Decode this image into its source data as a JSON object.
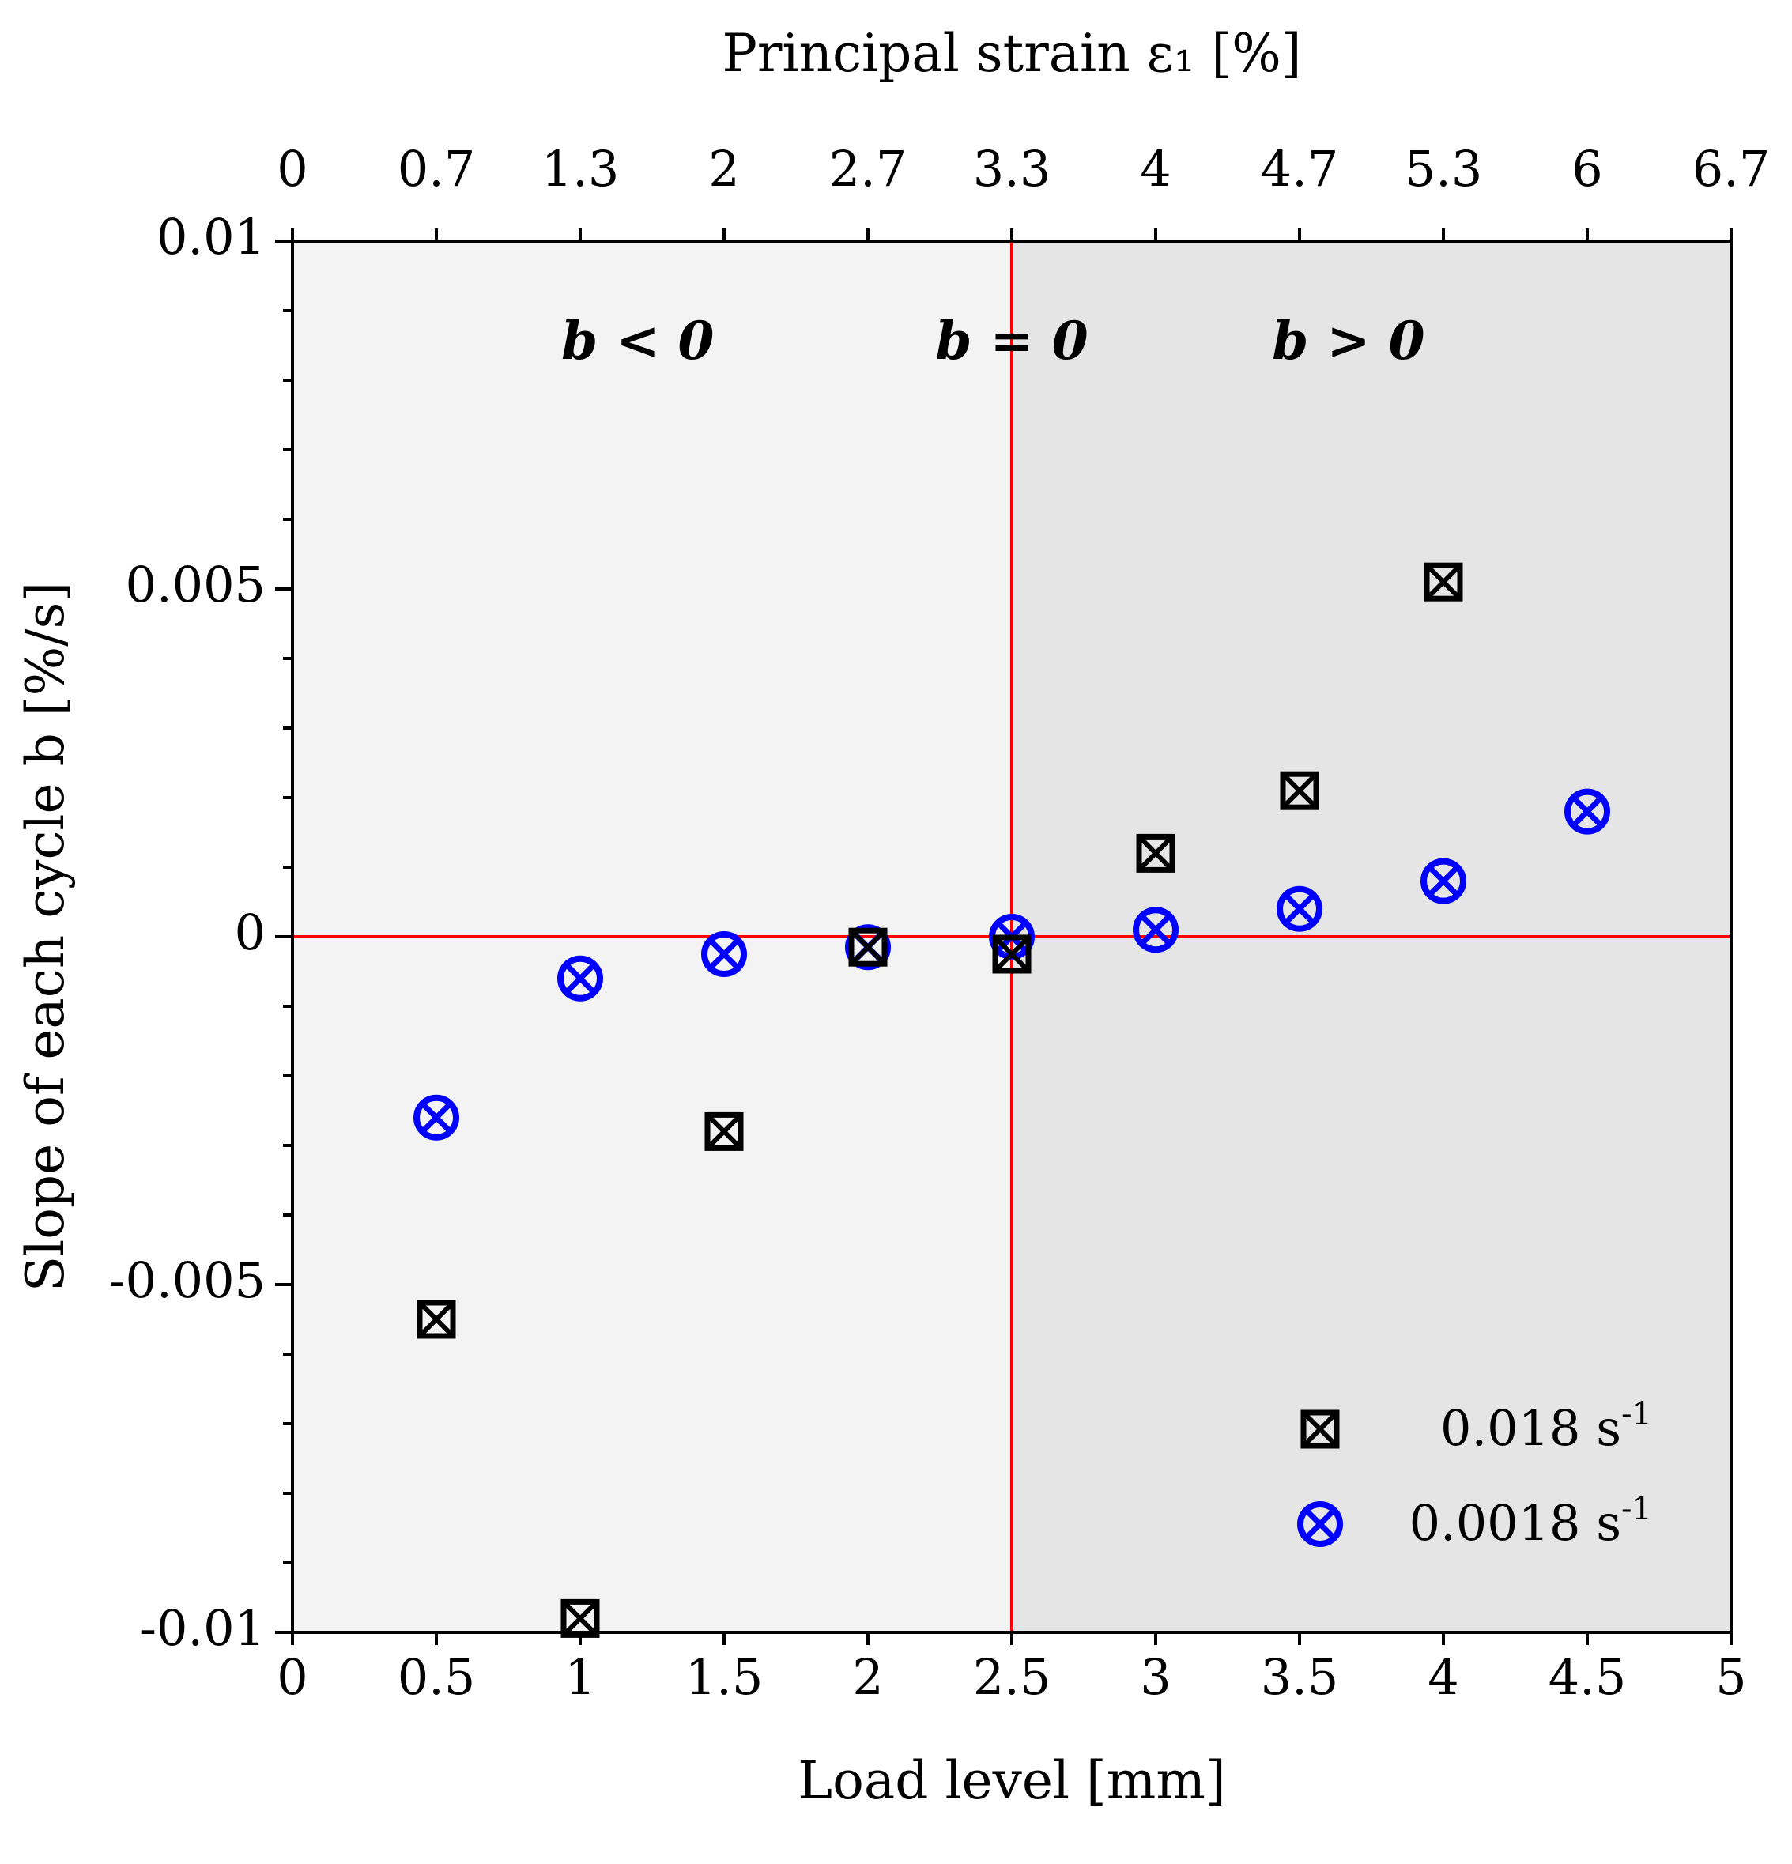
{
  "chart_data": {
    "type": "scatter",
    "title": "",
    "xlabel": "Load level [mm]",
    "x2label": "Principal strain ε₁ [%]",
    "ylabel": "Slope of each cycle b [%/s]",
    "xlim": [
      0,
      5
    ],
    "ylim": [
      -0.01,
      0.01
    ],
    "x_ticks": [
      0,
      0.5,
      1,
      1.5,
      2,
      2.5,
      3,
      3.5,
      4,
      4.5,
      5
    ],
    "x_tick_labels": [
      "0",
      "0.5",
      "1",
      "1.5",
      "2",
      "2.5",
      "3",
      "3.5",
      "4",
      "4.5",
      "5"
    ],
    "x2_tick_labels": [
      "0",
      "0.7",
      "1.3",
      "2",
      "2.7",
      "3.3",
      "4",
      "4.7",
      "5.3",
      "6",
      "6.7"
    ],
    "y_ticks": [
      -0.01,
      -0.005,
      0,
      0.005,
      0.01
    ],
    "y_tick_labels": [
      "-0.01",
      "-0.005",
      "0",
      "0.005",
      "0.01"
    ],
    "y_minor_step": 0.001,
    "reference_lines": {
      "x": 2.5,
      "y": 0,
      "color": "#ff0000"
    },
    "regions": [
      {
        "label": "b < 0",
        "x_from": 0,
        "x_to": 2.5,
        "fill": "#f3f3f3",
        "label_x": 1.2,
        "label_y": 0.0085
      },
      {
        "label": "b = 0",
        "x_from": 2.5,
        "x_to": 5,
        "fill": "#e5e5e5",
        "label_x": 2.5,
        "label_y": 0.0085
      },
      {
        "label": "b > 0",
        "x_from": 2.5,
        "x_to": 5,
        "fill": "#e5e5e5",
        "label_x": 3.67,
        "label_y": 0.0085
      }
    ],
    "series": [
      {
        "name": "0.018 s-1",
        "label_base": "0.018 s",
        "label_exp": "-1",
        "marker": "boxed-x",
        "color": "#000000",
        "x": [
          0.5,
          1.0,
          1.5,
          2.0,
          2.5,
          3.0,
          3.5,
          4.0
        ],
        "y": [
          -0.0055,
          -0.0098,
          -0.0028,
          -0.00015,
          -0.00025,
          0.0012,
          0.0021,
          0.0051
        ]
      },
      {
        "name": "0.0018 s-1",
        "label_base": "0.0018 s",
        "label_exp": "-1",
        "marker": "circled-x",
        "color": "#0000ff",
        "x": [
          0.5,
          1.0,
          1.5,
          2.0,
          2.5,
          3.0,
          3.5,
          4.0,
          4.5
        ],
        "y": [
          -0.0026,
          -0.0006,
          -0.00025,
          -0.00015,
          0.0,
          0.0001,
          0.0004,
          0.0008,
          0.0018
        ]
      }
    ],
    "legend": {
      "placement": "bottom-right"
    }
  }
}
